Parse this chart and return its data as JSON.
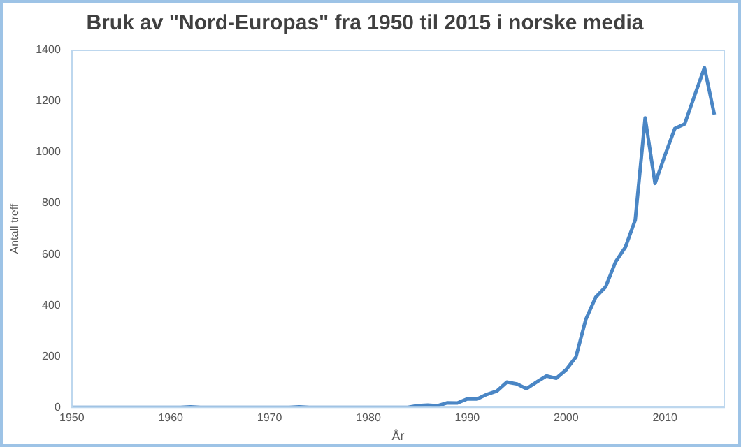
{
  "chart_data": {
    "type": "line",
    "title": "Bruk av \"Nord-Europas\" fra 1950 til 2015 i norske media",
    "xlabel": "År",
    "ylabel": "Antall treff",
    "x": [
      1950,
      1951,
      1952,
      1953,
      1954,
      1955,
      1956,
      1957,
      1958,
      1959,
      1960,
      1961,
      1962,
      1963,
      1964,
      1965,
      1966,
      1967,
      1968,
      1969,
      1970,
      1971,
      1972,
      1973,
      1974,
      1975,
      1976,
      1977,
      1978,
      1979,
      1980,
      1981,
      1982,
      1983,
      1984,
      1985,
      1986,
      1987,
      1988,
      1989,
      1990,
      1991,
      1992,
      1993,
      1994,
      1995,
      1996,
      1997,
      1998,
      1999,
      2000,
      2001,
      2002,
      2003,
      2004,
      2005,
      2006,
      2007,
      2008,
      2009,
      2010,
      2011,
      2012,
      2013,
      2014,
      2015
    ],
    "series": [
      {
        "color": "#4a86c5",
        "values": [
          0,
          0,
          0,
          0,
          0,
          0,
          0,
          0,
          0,
          0,
          0,
          0,
          2,
          0,
          0,
          0,
          0,
          0,
          0,
          0,
          0,
          0,
          0,
          2,
          0,
          0,
          0,
          0,
          0,
          0,
          0,
          0,
          0,
          0,
          0,
          7,
          9,
          6,
          18,
          17,
          33,
          33,
          51,
          64,
          99,
          92,
          73,
          99,
          123,
          114,
          147,
          198,
          345,
          432,
          472,
          570,
          628,
          735,
          1135,
          878,
          988,
          1093,
          1111,
          1222,
          1332,
          1148
        ]
      }
    ],
    "xlim": [
      1950,
      2016
    ],
    "xticks": [
      1950,
      1960,
      1970,
      1980,
      1990,
      2000,
      2010
    ],
    "ylim": [
      0,
      1400
    ],
    "yticks": [
      0,
      200,
      400,
      600,
      800,
      1000,
      1200,
      1400
    ],
    "grid": false,
    "legend": false,
    "marker": "none",
    "line_style": "solid"
  }
}
